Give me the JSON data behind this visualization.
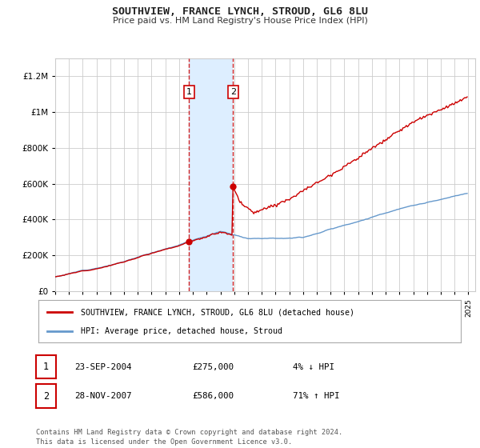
{
  "title": "SOUTHVIEW, FRANCE LYNCH, STROUD, GL6 8LU",
  "subtitle": "Price paid vs. HM Land Registry's House Price Index (HPI)",
  "footer": "Contains HM Land Registry data © Crown copyright and database right 2024.\nThis data is licensed under the Open Government Licence v3.0.",
  "legend_line1": "SOUTHVIEW, FRANCE LYNCH, STROUD, GL6 8LU (detached house)",
  "legend_line2": "HPI: Average price, detached house, Stroud",
  "sale1_label": "1",
  "sale1_date": "23-SEP-2004",
  "sale1_price": "£275,000",
  "sale1_hpi": "4% ↓ HPI",
  "sale2_label": "2",
  "sale2_date": "28-NOV-2007",
  "sale2_price": "£586,000",
  "sale2_hpi": "71% ↑ HPI",
  "red_color": "#cc0000",
  "blue_color": "#6699cc",
  "highlight_color": "#ddeeff",
  "background_color": "#ffffff",
  "grid_color": "#cccccc",
  "ylim": [
    0,
    1300000
  ],
  "yticks": [
    0,
    200000,
    400000,
    600000,
    800000,
    1000000,
    1200000
  ],
  "ytick_labels": [
    "£0",
    "£200K",
    "£400K",
    "£600K",
    "£800K",
    "£1M",
    "£1.2M"
  ],
  "sale1_x": 2004.73,
  "sale1_y": 275000,
  "sale2_x": 2007.91,
  "sale2_y": 586000,
  "highlight_x1": 2004.73,
  "highlight_x2": 2007.91,
  "xlim_left": 1995,
  "xlim_right": 2025.5
}
